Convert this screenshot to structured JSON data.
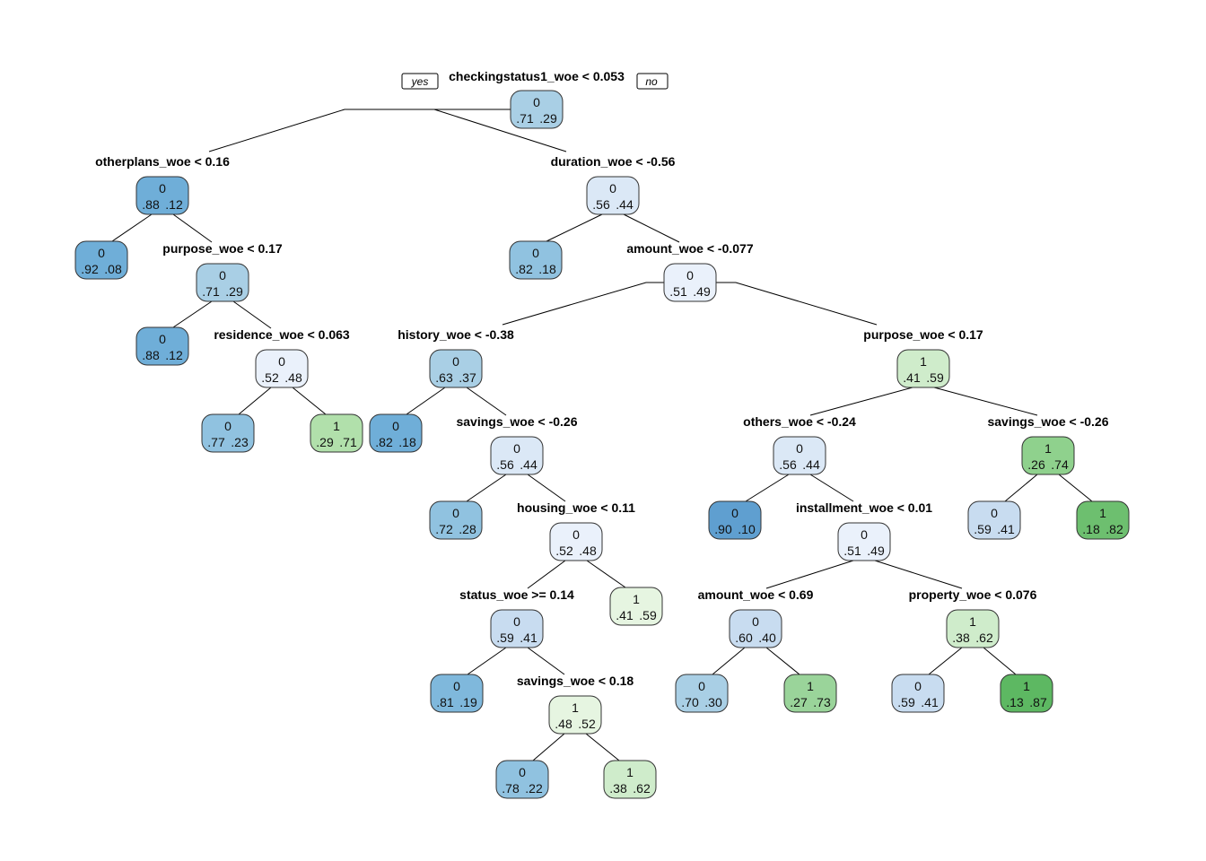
{
  "branch_labels": {
    "yes": "yes",
    "no": "no"
  },
  "palette": {
    "blue": [
      "#eaf1fb",
      "#dbe8f6",
      "#c8dcf0",
      "#a9cfe5",
      "#90c2e0",
      "#6faed8"
    ],
    "green": [
      "#e6f5e1",
      "#cfeccb",
      "#b1e0ab",
      "#8fd18d",
      "#6dbf6f"
    ]
  },
  "nodes": [
    {
      "id": "root",
      "cls": "0",
      "probs": [
        ".71",
        ".29"
      ],
      "split": "checkingstatus1_woe < 0.053",
      "color": "#a9cfe5"
    },
    {
      "id": "n2",
      "cls": "0",
      "probs": [
        ".88",
        ".12"
      ],
      "split": "otherplans_woe < 0.16",
      "color": "#6faed8"
    },
    {
      "id": "n3",
      "cls": "0",
      "probs": [
        ".56",
        ".44"
      ],
      "split": "duration_woe < -0.56",
      "color": "#dbe8f6"
    },
    {
      "id": "n4",
      "cls": "0",
      "probs": [
        ".92",
        ".08"
      ],
      "split": "",
      "color": "#6faed8"
    },
    {
      "id": "n5",
      "cls": "0",
      "probs": [
        ".71",
        ".29"
      ],
      "split": "purpose_woe < 0.17",
      "color": "#a9cfe5"
    },
    {
      "id": "n6",
      "cls": "0",
      "probs": [
        ".82",
        ".18"
      ],
      "split": "",
      "color": "#90c2e0"
    },
    {
      "id": "n7",
      "cls": "0",
      "probs": [
        ".51",
        ".49"
      ],
      "split": "amount_woe < -0.077",
      "color": "#eaf1fb"
    },
    {
      "id": "n10",
      "cls": "0",
      "probs": [
        ".88",
        ".12"
      ],
      "split": "",
      "color": "#6faed8"
    },
    {
      "id": "n11",
      "cls": "0",
      "probs": [
        ".52",
        ".48"
      ],
      "split": "residence_woe < 0.063",
      "color": "#eaf1fb"
    },
    {
      "id": "n14",
      "cls": "0",
      "probs": [
        ".63",
        ".37"
      ],
      "split": "history_woe < -0.38",
      "color": "#a9cfe5"
    },
    {
      "id": "n15",
      "cls": "1",
      "probs": [
        ".41",
        ".59"
      ],
      "split": "purpose_woe < 0.17",
      "color": "#cfeccb"
    },
    {
      "id": "n22",
      "cls": "0",
      "probs": [
        ".77",
        ".23"
      ],
      "split": "",
      "color": "#90c2e0"
    },
    {
      "id": "n23",
      "cls": "1",
      "probs": [
        ".29",
        ".71"
      ],
      "split": "",
      "color": "#b1e0ab"
    },
    {
      "id": "n28",
      "cls": "0",
      "probs": [
        ".82",
        ".18"
      ],
      "split": "",
      "color": "#6faed8"
    },
    {
      "id": "n29",
      "cls": "0",
      "probs": [
        ".56",
        ".44"
      ],
      "split": "savings_woe < -0.26",
      "color": "#dbe8f6"
    },
    {
      "id": "n30",
      "cls": "0",
      "probs": [
        ".56",
        ".44"
      ],
      "split": "others_woe < -0.24",
      "color": "#dbe8f6"
    },
    {
      "id": "n31",
      "cls": "1",
      "probs": [
        ".26",
        ".74"
      ],
      "split": "savings_woe < -0.26",
      "color": "#8fd18d"
    },
    {
      "id": "n58",
      "cls": "0",
      "probs": [
        ".72",
        ".28"
      ],
      "split": "",
      "color": "#90c2e0"
    },
    {
      "id": "n59",
      "cls": "0",
      "probs": [
        ".52",
        ".48"
      ],
      "split": "housing_woe < 0.11",
      "color": "#eaf1fb"
    },
    {
      "id": "n60",
      "cls": "0",
      "probs": [
        ".90",
        ".10"
      ],
      "split": "",
      "color": "#5f9fd0"
    },
    {
      "id": "n61",
      "cls": "0",
      "probs": [
        ".51",
        ".49"
      ],
      "split": "installment_woe < 0.01",
      "color": "#eaf1fb"
    },
    {
      "id": "n62",
      "cls": "0",
      "probs": [
        ".59",
        ".41"
      ],
      "split": "",
      "color": "#c8dcf0"
    },
    {
      "id": "n63",
      "cls": "1",
      "probs": [
        ".18",
        ".82"
      ],
      "split": "",
      "color": "#6dbf6f"
    },
    {
      "id": "n118",
      "cls": "0",
      "probs": [
        ".59",
        ".41"
      ],
      "split": "status_woe >= 0.14",
      "color": "#c8dcf0"
    },
    {
      "id": "n119",
      "cls": "1",
      "probs": [
        ".41",
        ".59"
      ],
      "split": "",
      "color": "#e6f5e1"
    },
    {
      "id": "n122",
      "cls": "0",
      "probs": [
        ".60",
        ".40"
      ],
      "split": "amount_woe < 0.69",
      "color": "#c8dcf0"
    },
    {
      "id": "n123",
      "cls": "1",
      "probs": [
        ".38",
        ".62"
      ],
      "split": "property_woe < 0.076",
      "color": "#cfeccb"
    },
    {
      "id": "n236",
      "cls": "0",
      "probs": [
        ".81",
        ".19"
      ],
      "split": "",
      "color": "#7fb8dc"
    },
    {
      "id": "n237",
      "cls": "1",
      "probs": [
        ".48",
        ".52"
      ],
      "split": "savings_woe < 0.18",
      "color": "#e6f5e1"
    },
    {
      "id": "n244",
      "cls": "0",
      "probs": [
        ".70",
        ".30"
      ],
      "split": "",
      "color": "#a9cfe5"
    },
    {
      "id": "n245",
      "cls": "1",
      "probs": [
        ".27",
        ".73"
      ],
      "split": "",
      "color": "#9ad49a"
    },
    {
      "id": "n246",
      "cls": "0",
      "probs": [
        ".59",
        ".41"
      ],
      "split": "",
      "color": "#c8dcf0"
    },
    {
      "id": "n247",
      "cls": "1",
      "probs": [
        ".13",
        ".87"
      ],
      "split": "",
      "color": "#5db862"
    },
    {
      "id": "n474",
      "cls": "0",
      "probs": [
        ".78",
        ".22"
      ],
      "split": "",
      "color": "#90c2e0"
    },
    {
      "id": "n475",
      "cls": "1",
      "probs": [
        ".38",
        ".62"
      ],
      "split": "",
      "color": "#cfeccb"
    }
  ],
  "edges": [
    [
      "root",
      "n2"
    ],
    [
      "root",
      "n3"
    ],
    [
      "n2",
      "n4"
    ],
    [
      "n2",
      "n5"
    ],
    [
      "n3",
      "n6"
    ],
    [
      "n3",
      "n7"
    ],
    [
      "n5",
      "n10"
    ],
    [
      "n5",
      "n11"
    ],
    [
      "n7",
      "n14"
    ],
    [
      "n7",
      "n15"
    ],
    [
      "n11",
      "n22"
    ],
    [
      "n11",
      "n23"
    ],
    [
      "n14",
      "n28"
    ],
    [
      "n14",
      "n29"
    ],
    [
      "n15",
      "n30"
    ],
    [
      "n15",
      "n31"
    ],
    [
      "n29",
      "n58"
    ],
    [
      "n29",
      "n59"
    ],
    [
      "n30",
      "n60"
    ],
    [
      "n30",
      "n61"
    ],
    [
      "n31",
      "n62"
    ],
    [
      "n31",
      "n63"
    ],
    [
      "n59",
      "n118"
    ],
    [
      "n59",
      "n119"
    ],
    [
      "n61",
      "n122"
    ],
    [
      "n61",
      "n123"
    ],
    [
      "n118",
      "n236"
    ],
    [
      "n118",
      "n237"
    ],
    [
      "n122",
      "n244"
    ],
    [
      "n122",
      "n245"
    ],
    [
      "n123",
      "n246"
    ],
    [
      "n123",
      "n247"
    ],
    [
      "n237",
      "n474"
    ],
    [
      "n237",
      "n475"
    ]
  ]
}
